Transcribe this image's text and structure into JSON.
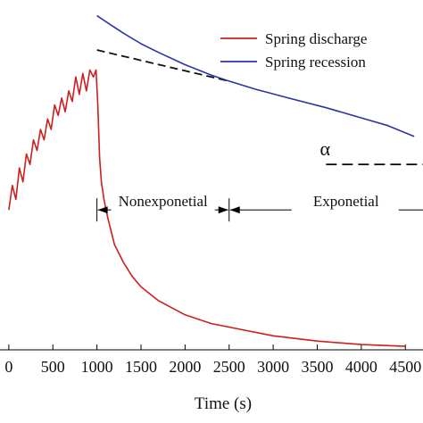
{
  "chart_data": {
    "type": "line",
    "title": "",
    "xlabel": "Time (s)",
    "ylabel": "",
    "xlim": [
      -100,
      4700
    ],
    "ylim": [
      0,
      1
    ],
    "x_ticks": [
      0,
      500,
      1000,
      1500,
      2000,
      2500,
      3000,
      3500,
      4000,
      4500
    ],
    "x_tick_labels": [
      "0",
      "500",
      "1000",
      "1500",
      "2000",
      "2500",
      "3000",
      "3500",
      "4000",
      "4500"
    ],
    "grid": false,
    "legend_position": "top-right",
    "series": [
      {
        "name": "Spring discharge",
        "color": "#cc1f1f",
        "x": [
          0,
          40,
          80,
          120,
          160,
          200,
          240,
          280,
          320,
          360,
          400,
          440,
          480,
          520,
          560,
          600,
          640,
          680,
          720,
          760,
          800,
          840,
          880,
          920,
          960,
          990,
          1010,
          1030,
          1050,
          1080,
          1120,
          1160,
          1200,
          1300,
          1400,
          1500,
          1700,
          2000,
          2300,
          2600,
          3000,
          3500,
          4000,
          4500
        ],
        "y": [
          0.4,
          0.47,
          0.43,
          0.52,
          0.48,
          0.56,
          0.53,
          0.6,
          0.57,
          0.63,
          0.6,
          0.66,
          0.63,
          0.7,
          0.67,
          0.72,
          0.68,
          0.74,
          0.71,
          0.78,
          0.73,
          0.79,
          0.74,
          0.8,
          0.78,
          0.8,
          0.7,
          0.55,
          0.48,
          0.43,
          0.38,
          0.34,
          0.3,
          0.25,
          0.21,
          0.18,
          0.14,
          0.1,
          0.075,
          0.06,
          0.04,
          0.025,
          0.015,
          0.01
        ]
      },
      {
        "name": "Spring recession",
        "color": "#2c33a8",
        "x": [
          1000,
          1150,
          1300,
          1500,
          1700,
          2000,
          2300,
          2500,
          2800,
          3200,
          3600,
          4000,
          4300,
          4600
        ],
        "y": [
          0.955,
          0.93,
          0.905,
          0.875,
          0.85,
          0.815,
          0.785,
          0.768,
          0.745,
          0.718,
          0.692,
          0.663,
          0.641,
          0.61
        ]
      }
    ],
    "reference_line": {
      "style": "dashed",
      "color": "#111111",
      "x": [
        1000,
        2500
      ],
      "y": [
        0.857,
        0.768
      ]
    },
    "annotations": {
      "alpha_symbol": "α",
      "nonexponential_label": "Nonexponetial",
      "exponential_label": "Exponetial",
      "nonexponential_range": [
        1000,
        2500
      ],
      "exponential_range": [
        2500,
        4700
      ],
      "bracket_level": 0.4
    }
  }
}
